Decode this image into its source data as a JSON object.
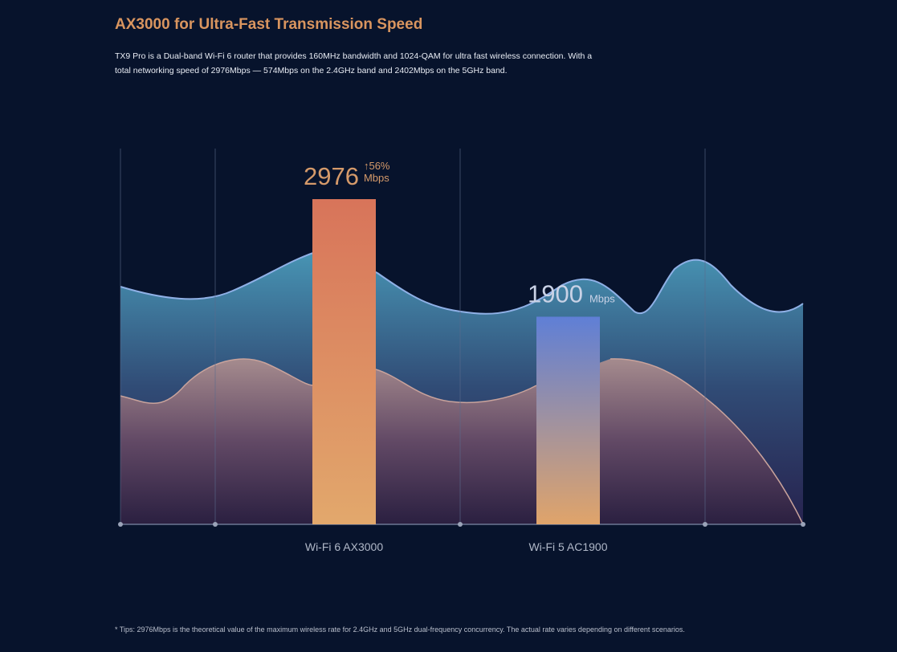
{
  "chart_data": {
    "type": "bar",
    "title": "AX3000 for Ultra-Fast Transmission Speed",
    "subtitle": "TX9 Pro is a Dual-band Wi-Fi 6 router that provides 160MHz bandwidth and 1024-QAM for ultra fast wireless connection. With a total networking speed of 2976Mbps — 574Mbps on the 2.4GHz band and 2402Mbps on the 5GHz band.",
    "categories": [
      "Wi-Fi 6 AX3000",
      "Wi-Fi 5 AC1900"
    ],
    "values": [
      2976,
      1900
    ],
    "unit": "Mbps",
    "annotations": [
      {
        "text": "↑56%"
      }
    ],
    "colors": [
      [
        "#d8745a",
        "#e2a86c"
      ],
      [
        "#5f7fd6",
        "#e0a46a"
      ]
    ],
    "footnote": "* Tips: 2976Mbps is the theoretical value of the maximum wireless rate for 2.4GHz and 5GHz dual-frequency concurrency. The actual rate varies depending on different scenarios."
  }
}
